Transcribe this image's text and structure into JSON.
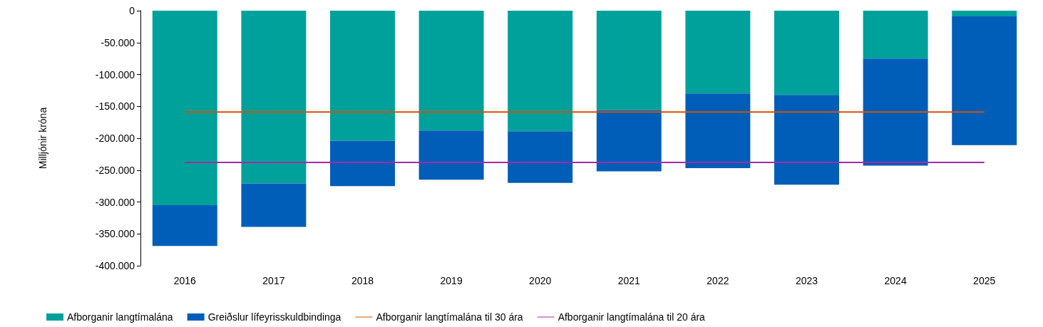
{
  "chart_data": {
    "type": "bar",
    "ylabel": "Milljónir króna",
    "categories": [
      "2016",
      "2017",
      "2018",
      "2019",
      "2020",
      "2021",
      "2022",
      "2023",
      "2024",
      "2025"
    ],
    "stacked": true,
    "series": [
      {
        "name": "Afborganir langtímalána",
        "color": "#00a19a",
        "values": [
          -305000,
          -271000,
          -204000,
          -188000,
          -189000,
          -156000,
          -130000,
          -132000,
          -75000,
          -9000
        ]
      },
      {
        "name": "Greiðslur lífeyrisskuldbindinga",
        "color": "#005eb8",
        "values": [
          -64000,
          -68000,
          -71000,
          -77000,
          -81000,
          -96000,
          -117000,
          -141000,
          -168000,
          -202000
        ]
      },
      {
        "name": "Afborganir langtímalána til 30 ára",
        "type": "line",
        "color": "#d4500a",
        "values": [
          -159000,
          -159000,
          -159000,
          -159000,
          -159000,
          -159000,
          -159000,
          -159000,
          -159000,
          -159000
        ]
      },
      {
        "name": "Afborganir langtímalána til 20 ára",
        "type": "line",
        "color": "#a12ca8",
        "values": [
          -238000,
          -238000,
          -238000,
          -238000,
          -238000,
          -238000,
          -238000,
          -238000,
          -238000,
          -238000
        ]
      }
    ],
    "ylim": [
      -400000,
      0
    ],
    "yticks": [
      {
        "value": -400000,
        "label": "-400.000"
      },
      {
        "value": -350000,
        "label": "-350.000"
      },
      {
        "value": -300000,
        "label": "-300.000"
      },
      {
        "value": -250000,
        "label": "-250.000"
      },
      {
        "value": -200000,
        "label": "-200.000"
      },
      {
        "value": -150000,
        "label": "-150.000"
      },
      {
        "value": -100000,
        "label": "-100.000"
      },
      {
        "value": -50000,
        "label": "-50.000"
      },
      0
    ],
    "grid": false,
    "legend": "bottom",
    "marker": "none",
    "line_style": "solid"
  }
}
